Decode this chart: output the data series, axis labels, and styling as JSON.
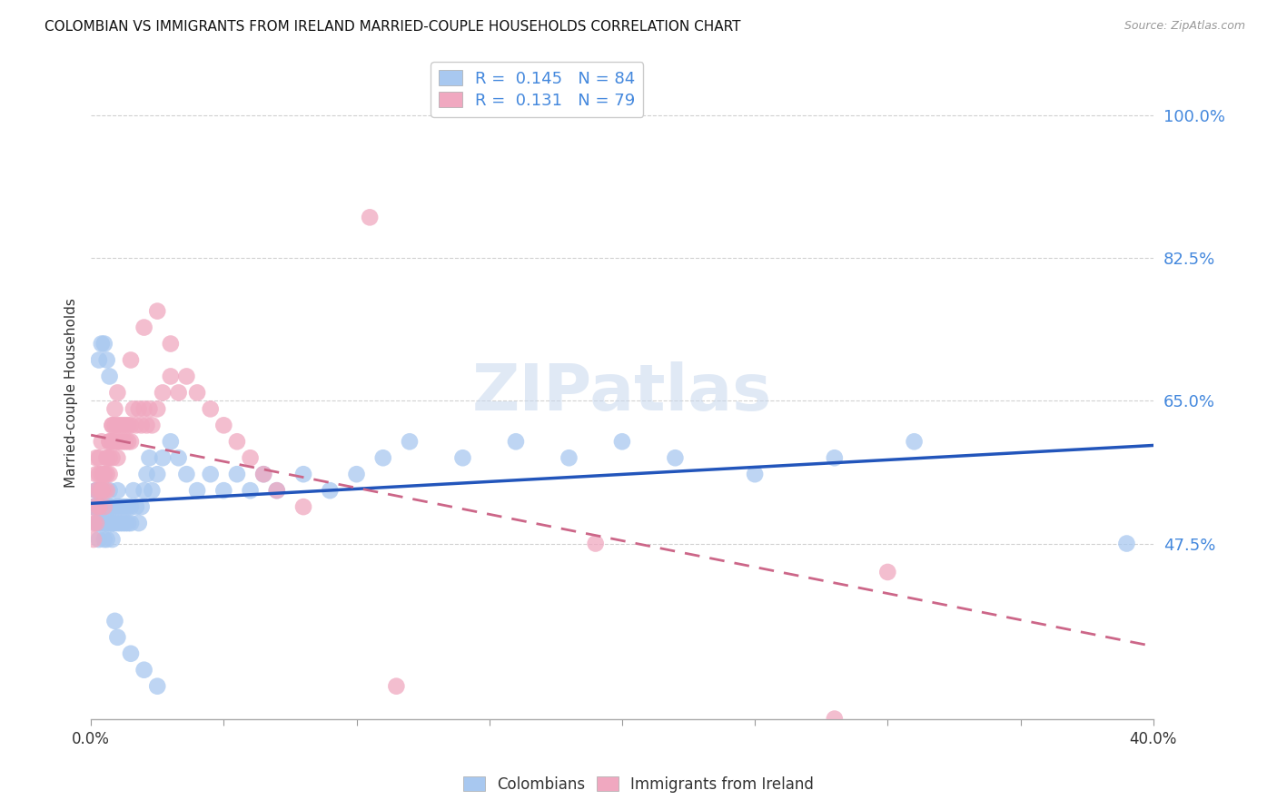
{
  "title": "COLOMBIAN VS IMMIGRANTS FROM IRELAND MARRIED-COUPLE HOUSEHOLDS CORRELATION CHART",
  "source": "Source: ZipAtlas.com",
  "ylabel": "Married-couple Households",
  "ytick_labels": [
    "100.0%",
    "82.5%",
    "65.0%",
    "47.5%"
  ],
  "ytick_vals": [
    1.0,
    0.825,
    0.65,
    0.475
  ],
  "xlim": [
    0.0,
    0.4
  ],
  "ylim": [
    0.26,
    1.06
  ],
  "colombians_R": 0.145,
  "colombians_N": 84,
  "ireland_R": 0.131,
  "ireland_N": 79,
  "colombian_color": "#A8C8F0",
  "ireland_color": "#F0A8C0",
  "trendline_colombian_color": "#2255BB",
  "trendline_ireland_color": "#CC6688",
  "background_color": "#FFFFFF",
  "grid_color": "#CCCCCC",
  "watermark": "ZIPatlas",
  "colombians_x": [
    0.001,
    0.002,
    0.002,
    0.003,
    0.003,
    0.003,
    0.003,
    0.004,
    0.004,
    0.004,
    0.005,
    0.005,
    0.005,
    0.006,
    0.006,
    0.006,
    0.007,
    0.007,
    0.007,
    0.008,
    0.008,
    0.008,
    0.009,
    0.009,
    0.01,
    0.01,
    0.01,
    0.011,
    0.011,
    0.012,
    0.012,
    0.013,
    0.013,
    0.014,
    0.014,
    0.015,
    0.015,
    0.016,
    0.017,
    0.018,
    0.019,
    0.02,
    0.021,
    0.022,
    0.023,
    0.025,
    0.027,
    0.03,
    0.033,
    0.036,
    0.04,
    0.045,
    0.05,
    0.055,
    0.06,
    0.065,
    0.07,
    0.08,
    0.09,
    0.1,
    0.11,
    0.12,
    0.14,
    0.16,
    0.18,
    0.2,
    0.22,
    0.25,
    0.28,
    0.31,
    0.001,
    0.002,
    0.003,
    0.004,
    0.005,
    0.006,
    0.007,
    0.008,
    0.009,
    0.01,
    0.015,
    0.02,
    0.025,
    0.39
  ],
  "colombians_y": [
    0.52,
    0.5,
    0.54,
    0.48,
    0.5,
    0.52,
    0.54,
    0.5,
    0.52,
    0.54,
    0.48,
    0.5,
    0.52,
    0.48,
    0.5,
    0.52,
    0.5,
    0.52,
    0.54,
    0.48,
    0.5,
    0.52,
    0.5,
    0.52,
    0.5,
    0.52,
    0.54,
    0.5,
    0.52,
    0.5,
    0.52,
    0.5,
    0.52,
    0.5,
    0.52,
    0.5,
    0.52,
    0.54,
    0.52,
    0.5,
    0.52,
    0.54,
    0.56,
    0.58,
    0.54,
    0.56,
    0.58,
    0.6,
    0.58,
    0.56,
    0.54,
    0.56,
    0.54,
    0.56,
    0.54,
    0.56,
    0.54,
    0.56,
    0.54,
    0.56,
    0.58,
    0.6,
    0.58,
    0.6,
    0.58,
    0.6,
    0.58,
    0.56,
    0.58,
    0.6,
    0.52,
    0.54,
    0.7,
    0.72,
    0.72,
    0.7,
    0.68,
    0.5,
    0.38,
    0.36,
    0.34,
    0.32,
    0.3,
    0.475
  ],
  "ireland_x": [
    0.001,
    0.001,
    0.002,
    0.002,
    0.002,
    0.003,
    0.003,
    0.003,
    0.003,
    0.004,
    0.004,
    0.004,
    0.005,
    0.005,
    0.005,
    0.006,
    0.006,
    0.006,
    0.007,
    0.007,
    0.007,
    0.008,
    0.008,
    0.008,
    0.009,
    0.009,
    0.01,
    0.01,
    0.01,
    0.011,
    0.011,
    0.012,
    0.012,
    0.013,
    0.013,
    0.014,
    0.014,
    0.015,
    0.015,
    0.016,
    0.017,
    0.018,
    0.019,
    0.02,
    0.021,
    0.022,
    0.023,
    0.025,
    0.027,
    0.03,
    0.033,
    0.036,
    0.04,
    0.045,
    0.05,
    0.055,
    0.06,
    0.065,
    0.07,
    0.08,
    0.001,
    0.002,
    0.003,
    0.004,
    0.005,
    0.006,
    0.007,
    0.008,
    0.009,
    0.01,
    0.015,
    0.02,
    0.025,
    0.03,
    0.19,
    0.3,
    0.115,
    0.105,
    0.28
  ],
  "ireland_y": [
    0.5,
    0.52,
    0.54,
    0.56,
    0.58,
    0.52,
    0.54,
    0.56,
    0.58,
    0.6,
    0.54,
    0.56,
    0.52,
    0.54,
    0.56,
    0.54,
    0.56,
    0.58,
    0.56,
    0.58,
    0.6,
    0.58,
    0.6,
    0.62,
    0.6,
    0.62,
    0.58,
    0.6,
    0.62,
    0.6,
    0.62,
    0.6,
    0.62,
    0.6,
    0.62,
    0.6,
    0.62,
    0.6,
    0.62,
    0.64,
    0.62,
    0.64,
    0.62,
    0.64,
    0.62,
    0.64,
    0.62,
    0.64,
    0.66,
    0.68,
    0.66,
    0.68,
    0.66,
    0.64,
    0.62,
    0.6,
    0.58,
    0.56,
    0.54,
    0.52,
    0.48,
    0.5,
    0.52,
    0.54,
    0.56,
    0.58,
    0.6,
    0.62,
    0.64,
    0.66,
    0.7,
    0.74,
    0.76,
    0.72,
    0.475,
    0.44,
    0.3,
    0.875,
    0.26
  ]
}
